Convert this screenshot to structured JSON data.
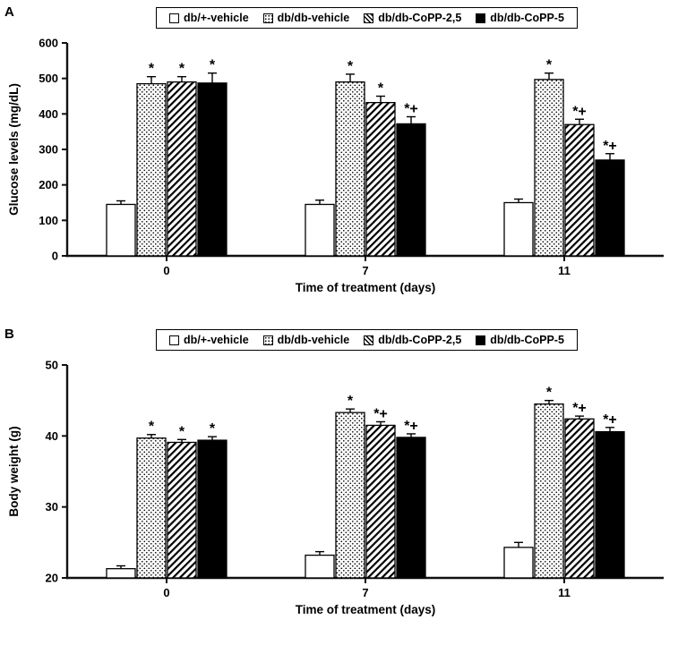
{
  "panels": [
    {
      "letter": "A"
    },
    {
      "letter": "B"
    }
  ],
  "colors": {
    "foreground": "#000000",
    "background": "#ffffff"
  },
  "chart_data": [
    {
      "type": "bar",
      "panel": "A",
      "title": "",
      "xlabel": "Time of treatment (days)",
      "ylabel": "Glucose levels (mg/dL)",
      "ylim": [
        0,
        600
      ],
      "yticks": [
        0,
        100,
        200,
        300,
        400,
        500,
        600
      ],
      "categories": [
        "0",
        "7",
        "11"
      ],
      "grid": false,
      "legend_position": "top-center",
      "series": [
        {
          "name": "db/+-vehicle",
          "pattern": "open",
          "values": [
            145,
            145,
            150
          ],
          "errors": [
            10,
            12,
            10
          ],
          "annotations": [
            "",
            "",
            ""
          ]
        },
        {
          "name": "db/db-vehicle",
          "pattern": "dots",
          "values": [
            485,
            490,
            497
          ],
          "errors": [
            20,
            22,
            18
          ],
          "annotations": [
            "*",
            "*",
            "*"
          ]
        },
        {
          "name": "db/db-CoPP-2,5",
          "pattern": "hatch",
          "values": [
            490,
            432,
            370
          ],
          "errors": [
            15,
            18,
            15
          ],
          "annotations": [
            "*",
            "*",
            "*+"
          ]
        },
        {
          "name": "db/db-CoPP-5",
          "pattern": "solid",
          "values": [
            487,
            372,
            270
          ],
          "errors": [
            28,
            20,
            18
          ],
          "annotations": [
            "*",
            "*+",
            "*+"
          ]
        }
      ]
    },
    {
      "type": "bar",
      "panel": "B",
      "title": "",
      "xlabel": "Time of treatment (days)",
      "ylabel": "Body weight (g)",
      "ylim": [
        20,
        50
      ],
      "yticks": [
        20,
        30,
        40,
        50
      ],
      "categories": [
        "0",
        "7",
        "11"
      ],
      "grid": false,
      "legend_position": "top-center",
      "series": [
        {
          "name": "db/+-vehicle",
          "pattern": "open",
          "values": [
            21.3,
            23.2,
            24.3
          ],
          "errors": [
            0.4,
            0.5,
            0.7
          ],
          "annotations": [
            "",
            "",
            ""
          ]
        },
        {
          "name": "db/db-vehicle",
          "pattern": "dots",
          "values": [
            39.7,
            43.3,
            44.5
          ],
          "errors": [
            0.5,
            0.5,
            0.5
          ],
          "annotations": [
            "*",
            "*",
            "*"
          ]
        },
        {
          "name": "db/db-CoPP-2,5",
          "pattern": "hatch",
          "values": [
            39.1,
            41.5,
            42.4
          ],
          "errors": [
            0.4,
            0.5,
            0.4
          ],
          "annotations": [
            "*",
            "*+",
            "*+"
          ]
        },
        {
          "name": "db/db-CoPP-5",
          "pattern": "solid",
          "values": [
            39.4,
            39.8,
            40.6
          ],
          "errors": [
            0.5,
            0.5,
            0.6
          ],
          "annotations": [
            "*",
            "*+",
            "*+"
          ]
        }
      ]
    }
  ]
}
